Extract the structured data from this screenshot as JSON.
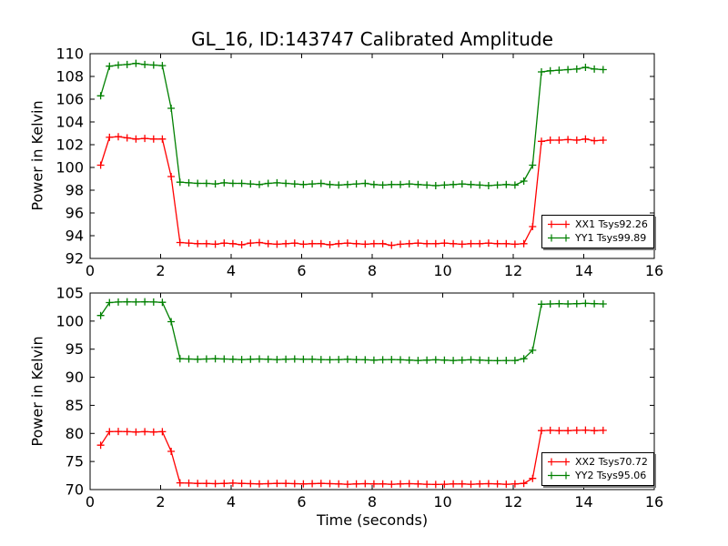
{
  "chart_data": [
    {
      "type": "line",
      "title": "GL_16, ID:143747 Calibrated Amplitude",
      "xlabel": "",
      "ylabel": "Power in Kelvin",
      "xlim": [
        0,
        16
      ],
      "ylim": [
        92,
        110
      ],
      "xticks": [
        0,
        2,
        4,
        6,
        8,
        10,
        12,
        14,
        16
      ],
      "yticks": [
        92,
        94,
        96,
        98,
        100,
        102,
        104,
        106,
        108,
        110
      ],
      "grid": false,
      "legend_position": "lower right",
      "x": [
        0.3,
        0.55,
        0.8,
        1.05,
        1.3,
        1.55,
        1.8,
        2.05,
        2.3,
        2.55,
        2.8,
        3.05,
        3.3,
        3.55,
        3.8,
        4.05,
        4.3,
        4.55,
        4.8,
        5.05,
        5.3,
        5.55,
        5.8,
        6.05,
        6.3,
        6.55,
        6.8,
        7.05,
        7.3,
        7.55,
        7.8,
        8.05,
        8.3,
        8.55,
        8.8,
        9.05,
        9.3,
        9.55,
        9.8,
        10.05,
        10.3,
        10.55,
        10.8,
        11.05,
        11.3,
        11.55,
        11.8,
        12.05,
        12.3,
        12.55,
        12.8,
        13.05,
        13.3,
        13.55,
        13.8,
        14.05,
        14.3,
        14.55
      ],
      "series": [
        {
          "name": "XX1 Tsys92.26",
          "color": "#ff0000",
          "values": [
            100.2,
            102.65,
            102.7,
            102.6,
            102.5,
            102.55,
            102.5,
            102.5,
            99.2,
            93.4,
            93.35,
            93.3,
            93.3,
            93.25,
            93.35,
            93.3,
            93.2,
            93.35,
            93.4,
            93.3,
            93.25,
            93.3,
            93.35,
            93.25,
            93.3,
            93.3,
            93.2,
            93.3,
            93.35,
            93.3,
            93.25,
            93.3,
            93.3,
            93.15,
            93.25,
            93.3,
            93.35,
            93.3,
            93.3,
            93.35,
            93.3,
            93.25,
            93.3,
            93.3,
            93.35,
            93.3,
            93.3,
            93.25,
            93.3,
            94.8,
            102.3,
            102.4,
            102.4,
            102.45,
            102.4,
            102.5,
            102.35,
            102.4
          ]
        },
        {
          "name": "YY1 Tsys99.89",
          "color": "#008000",
          "values": [
            106.3,
            108.9,
            109.0,
            109.05,
            109.15,
            109.05,
            109.0,
            108.95,
            105.2,
            98.7,
            98.65,
            98.6,
            98.6,
            98.55,
            98.65,
            98.6,
            98.6,
            98.55,
            98.5,
            98.6,
            98.65,
            98.6,
            98.55,
            98.5,
            98.55,
            98.6,
            98.5,
            98.45,
            98.5,
            98.55,
            98.6,
            98.5,
            98.45,
            98.5,
            98.5,
            98.55,
            98.5,
            98.45,
            98.4,
            98.45,
            98.5,
            98.55,
            98.5,
            98.45,
            98.4,
            98.45,
            98.5,
            98.45,
            98.8,
            100.2,
            108.4,
            108.5,
            108.55,
            108.6,
            108.65,
            108.8,
            108.65,
            108.6
          ]
        }
      ]
    },
    {
      "type": "line",
      "title": "",
      "xlabel": "Time (seconds)",
      "ylabel": "Power in Kelvin",
      "xlim": [
        0,
        16
      ],
      "ylim": [
        70,
        105
      ],
      "xticks": [
        0,
        2,
        4,
        6,
        8,
        10,
        12,
        14,
        16
      ],
      "yticks": [
        70,
        75,
        80,
        85,
        90,
        95,
        100,
        105
      ],
      "grid": false,
      "legend_position": "lower right",
      "x": [
        0.3,
        0.55,
        0.8,
        1.05,
        1.3,
        1.55,
        1.8,
        2.05,
        2.3,
        2.55,
        2.8,
        3.05,
        3.3,
        3.55,
        3.8,
        4.05,
        4.3,
        4.55,
        4.8,
        5.05,
        5.3,
        5.55,
        5.8,
        6.05,
        6.3,
        6.55,
        6.8,
        7.05,
        7.3,
        7.55,
        7.8,
        8.05,
        8.3,
        8.55,
        8.8,
        9.05,
        9.3,
        9.55,
        9.8,
        10.05,
        10.3,
        10.55,
        10.8,
        11.05,
        11.3,
        11.55,
        11.8,
        12.05,
        12.3,
        12.55,
        12.8,
        13.05,
        13.3,
        13.55,
        13.8,
        14.05,
        14.3,
        14.55
      ],
      "series": [
        {
          "name": "XX2 Tsys70.72",
          "color": "#ff0000",
          "values": [
            77.9,
            80.3,
            80.35,
            80.3,
            80.25,
            80.3,
            80.25,
            80.3,
            76.8,
            71.2,
            71.15,
            71.1,
            71.1,
            71.05,
            71.1,
            71.15,
            71.1,
            71.05,
            71.0,
            71.05,
            71.1,
            71.1,
            71.05,
            71.0,
            71.05,
            71.1,
            71.05,
            71.0,
            70.95,
            71.0,
            71.05,
            71.0,
            71.0,
            70.95,
            71.0,
            71.05,
            71.0,
            70.95,
            70.9,
            70.95,
            71.0,
            71.0,
            70.95,
            71.0,
            71.05,
            71.0,
            70.95,
            71.0,
            71.1,
            72.0,
            80.5,
            80.55,
            80.5,
            80.5,
            80.55,
            80.6,
            80.5,
            80.55
          ]
        },
        {
          "name": "YY2 Tsys95.06",
          "color": "#008000",
          "values": [
            101.0,
            103.3,
            103.4,
            103.45,
            103.4,
            103.45,
            103.4,
            103.35,
            99.9,
            93.3,
            93.25,
            93.2,
            93.25,
            93.3,
            93.25,
            93.2,
            93.15,
            93.2,
            93.25,
            93.2,
            93.15,
            93.2,
            93.25,
            93.2,
            93.2,
            93.15,
            93.1,
            93.15,
            93.2,
            93.15,
            93.1,
            93.05,
            93.1,
            93.15,
            93.1,
            93.05,
            93.0,
            93.05,
            93.1,
            93.05,
            93.0,
            93.05,
            93.1,
            93.05,
            93.0,
            92.95,
            93.0,
            93.0,
            93.3,
            94.8,
            103.0,
            103.05,
            103.1,
            103.05,
            103.1,
            103.15,
            103.1,
            103.05
          ]
        }
      ]
    }
  ]
}
